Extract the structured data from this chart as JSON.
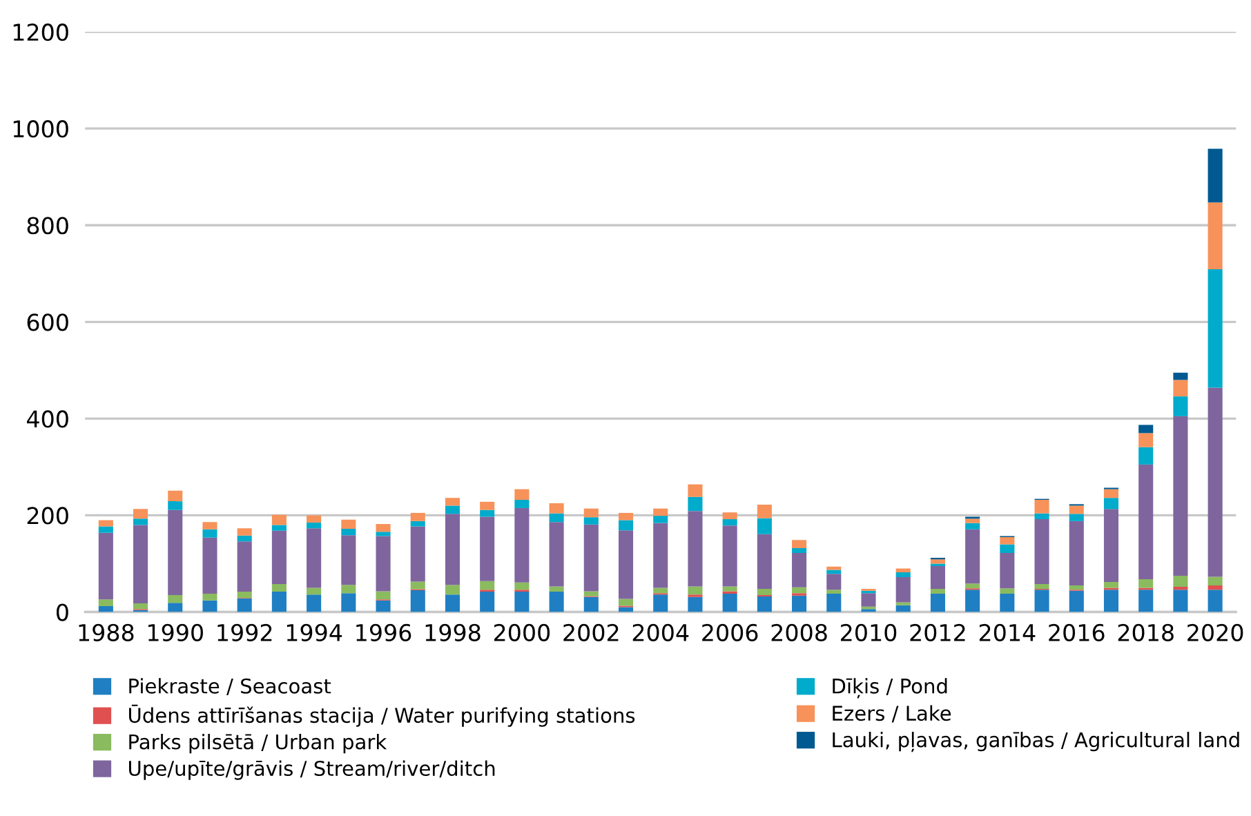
{
  "chart_data": {
    "type": "bar",
    "stacked": true,
    "categories": [
      "1988",
      null,
      "1990",
      null,
      "1992",
      null,
      "1994",
      null,
      "1996",
      null,
      "1998",
      null,
      "2000",
      null,
      "2002",
      null,
      "2004",
      null,
      "2006",
      null,
      "2008",
      null,
      "2010",
      null,
      "2012",
      null,
      "2014",
      null,
      "2016",
      null,
      "2018",
      null,
      "2020"
    ],
    "series": [
      {
        "name": "Piekraste / Seacoast",
        "color": "#1f7fc2",
        "values": [
          12,
          4,
          19,
          24,
          28,
          42,
          36,
          39,
          24,
          45,
          36,
          42,
          42,
          42,
          31,
          10,
          36,
          31,
          38,
          32,
          34,
          38,
          6,
          14,
          38,
          46,
          38,
          46,
          44,
          46,
          46,
          46,
          46
        ]
      },
      {
        "name": "Ūdens attīrīšanas stacija / Water purifying stations",
        "color": "#e05050",
        "values": [
          0,
          2,
          0,
          0,
          1,
          0,
          0,
          0,
          2,
          2,
          0,
          4,
          4,
          0,
          2,
          3,
          3,
          5,
          5,
          3,
          5,
          0,
          0,
          0,
          0,
          3,
          0,
          2,
          2,
          4,
          4,
          6,
          9
        ]
      },
      {
        "name": "Parks pilsētā / Urban park",
        "color": "#8abb5f",
        "values": [
          14,
          12,
          16,
          14,
          13,
          16,
          14,
          17,
          17,
          16,
          20,
          18,
          15,
          11,
          10,
          14,
          11,
          17,
          10,
          13,
          12,
          8,
          5,
          6,
          10,
          10,
          11,
          10,
          9,
          12,
          18,
          23,
          18
        ]
      },
      {
        "name": "Upe/upīte/grāvis / Stream/river/ditch",
        "color": "#7f659d",
        "values": [
          138,
          162,
          176,
          116,
          104,
          110,
          123,
          103,
          114,
          114,
          147,
          133,
          154,
          133,
          138,
          142,
          134,
          156,
          126,
          113,
          71,
          33,
          28,
          52,
          47,
          112,
          73,
          134,
          133,
          151,
          237,
          330,
          391
        ]
      },
      {
        "name": "Dīķis / Pond",
        "color": "#00abcc",
        "values": [
          13,
          13,
          18,
          17,
          12,
          12,
          12,
          13,
          9,
          11,
          17,
          14,
          17,
          18,
          15,
          21,
          15,
          29,
          13,
          33,
          10,
          8,
          5,
          10,
          5,
          13,
          18,
          12,
          15,
          23,
          36,
          41,
          245
        ]
      },
      {
        "name": "Ezers / Lake",
        "color": "#f7925a",
        "values": [
          13,
          20,
          22,
          15,
          15,
          21,
          15,
          19,
          16,
          17,
          16,
          17,
          22,
          21,
          18,
          15,
          15,
          26,
          14,
          28,
          17,
          7,
          4,
          8,
          9,
          9,
          15,
          28,
          17,
          18,
          29,
          34,
          138
        ]
      },
      {
        "name": "Lauki, pļavas, ganības / Agricultural land",
        "color": "#005a91",
        "values": [
          0,
          0,
          0,
          0,
          0,
          0,
          0,
          0,
          0,
          0,
          0,
          0,
          0,
          0,
          0,
          0,
          0,
          0,
          0,
          0,
          0,
          0,
          0,
          0,
          3,
          4,
          2,
          2,
          3,
          3,
          17,
          15,
          111
        ]
      }
    ],
    "ylim": [
      0,
      1200
    ],
    "yticks": [
      0,
      200,
      400,
      600,
      800,
      1000,
      1200
    ],
    "grid": "y",
    "legend": "bottom"
  }
}
